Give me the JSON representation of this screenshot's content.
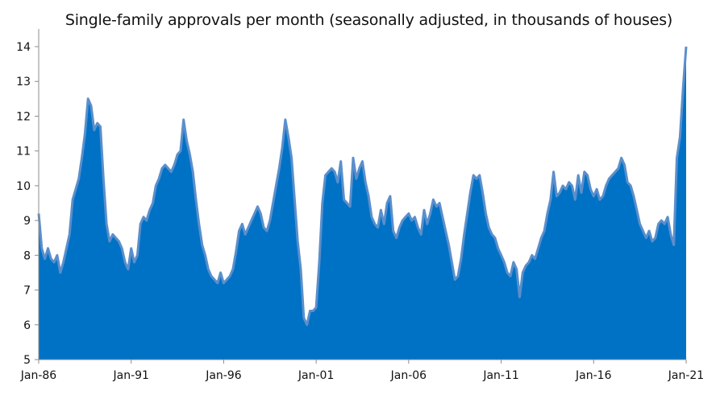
{
  "chart_data": {
    "type": "area",
    "title": "Single-family approvals per month (seasonally adjusted, in thousands of houses)",
    "xlabel": "",
    "ylabel": "",
    "ylim": [
      5,
      14
    ],
    "yticks": [
      5,
      6,
      7,
      8,
      9,
      10,
      11,
      12,
      13,
      14
    ],
    "xticks": [
      "Jan-86",
      "Jan-91",
      "Jan-96",
      "Jan-01",
      "Jan-06",
      "Jan-11",
      "Jan-16",
      "Jan-21"
    ],
    "x_range": [
      "1986-01",
      "2021-01"
    ],
    "grid": false,
    "fill_color": "#0072C6",
    "line_color": "#5B8FCB",
    "series": [
      {
        "points": [
          [
            "1986-01",
            9.2
          ],
          [
            "1986-03",
            8.2
          ],
          [
            "1986-05",
            7.9
          ],
          [
            "1986-07",
            8.2
          ],
          [
            "1986-09",
            7.9
          ],
          [
            "1986-11",
            7.8
          ],
          [
            "1987-01",
            8.0
          ],
          [
            "1987-03",
            7.5
          ],
          [
            "1987-05",
            7.8
          ],
          [
            "1987-07",
            8.2
          ],
          [
            "1987-09",
            8.6
          ],
          [
            "1987-11",
            9.6
          ],
          [
            "1988-01",
            9.9
          ],
          [
            "1988-03",
            10.2
          ],
          [
            "1988-05",
            10.8
          ],
          [
            "1988-07",
            11.5
          ],
          [
            "1988-09",
            12.5
          ],
          [
            "1988-11",
            12.3
          ],
          [
            "1989-01",
            11.6
          ],
          [
            "1989-03",
            11.8
          ],
          [
            "1989-05",
            11.7
          ],
          [
            "1989-07",
            10.2
          ],
          [
            "1989-09",
            8.9
          ],
          [
            "1989-11",
            8.4
          ],
          [
            "1990-01",
            8.6
          ],
          [
            "1990-03",
            8.5
          ],
          [
            "1990-05",
            8.4
          ],
          [
            "1990-07",
            8.2
          ],
          [
            "1990-09",
            7.8
          ],
          [
            "1990-11",
            7.6
          ],
          [
            "1991-01",
            8.2
          ],
          [
            "1991-03",
            7.8
          ],
          [
            "1991-05",
            8.0
          ],
          [
            "1991-07",
            8.9
          ],
          [
            "1991-09",
            9.1
          ],
          [
            "1991-11",
            9.0
          ],
          [
            "1992-01",
            9.3
          ],
          [
            "1992-03",
            9.5
          ],
          [
            "1992-05",
            10.0
          ],
          [
            "1992-07",
            10.2
          ],
          [
            "1992-09",
            10.5
          ],
          [
            "1992-11",
            10.6
          ],
          [
            "1993-01",
            10.5
          ],
          [
            "1993-03",
            10.4
          ],
          [
            "1993-05",
            10.6
          ],
          [
            "1993-07",
            10.9
          ],
          [
            "1993-09",
            11.0
          ],
          [
            "1993-11",
            11.9
          ],
          [
            "1994-01",
            11.3
          ],
          [
            "1994-03",
            10.9
          ],
          [
            "1994-05",
            10.4
          ],
          [
            "1994-07",
            9.6
          ],
          [
            "1994-09",
            8.9
          ],
          [
            "1994-11",
            8.3
          ],
          [
            "1995-01",
            8.0
          ],
          [
            "1995-03",
            7.6
          ],
          [
            "1995-05",
            7.4
          ],
          [
            "1995-07",
            7.3
          ],
          [
            "1995-09",
            7.2
          ],
          [
            "1995-11",
            7.5
          ],
          [
            "1996-01",
            7.2
          ],
          [
            "1996-03",
            7.3
          ],
          [
            "1996-05",
            7.4
          ],
          [
            "1996-07",
            7.6
          ],
          [
            "1996-09",
            8.1
          ],
          [
            "1996-11",
            8.7
          ],
          [
            "1997-01",
            8.9
          ],
          [
            "1997-03",
            8.6
          ],
          [
            "1997-05",
            8.8
          ],
          [
            "1997-07",
            9.0
          ],
          [
            "1997-09",
            9.2
          ],
          [
            "1997-11",
            9.4
          ],
          [
            "1998-01",
            9.2
          ],
          [
            "1998-03",
            8.8
          ],
          [
            "1998-05",
            8.7
          ],
          [
            "1998-07",
            9.0
          ],
          [
            "1998-09",
            9.5
          ],
          [
            "1998-11",
            10.0
          ],
          [
            "1999-01",
            10.5
          ],
          [
            "1999-03",
            11.1
          ],
          [
            "1999-05",
            11.9
          ],
          [
            "1999-07",
            11.4
          ],
          [
            "1999-09",
            10.8
          ],
          [
            "1999-11",
            9.6
          ],
          [
            "2000-01",
            8.4
          ],
          [
            "2000-03",
            7.6
          ],
          [
            "2000-05",
            6.2
          ],
          [
            "2000-07",
            6.0
          ],
          [
            "2000-09",
            6.4
          ],
          [
            "2000-11",
            6.4
          ],
          [
            "2001-01",
            6.5
          ],
          [
            "2001-03",
            7.8
          ],
          [
            "2001-05",
            9.5
          ],
          [
            "2001-07",
            10.3
          ],
          [
            "2001-09",
            10.4
          ],
          [
            "2001-11",
            10.5
          ],
          [
            "2002-01",
            10.4
          ],
          [
            "2002-03",
            10.1
          ],
          [
            "2002-05",
            10.7
          ],
          [
            "2002-07",
            9.6
          ],
          [
            "2002-09",
            9.5
          ],
          [
            "2002-11",
            9.4
          ],
          [
            "2003-01",
            10.8
          ],
          [
            "2003-03",
            10.2
          ],
          [
            "2003-05",
            10.5
          ],
          [
            "2003-07",
            10.7
          ],
          [
            "2003-09",
            10.1
          ],
          [
            "2003-11",
            9.7
          ],
          [
            "2004-01",
            9.1
          ],
          [
            "2004-03",
            8.9
          ],
          [
            "2004-05",
            8.8
          ],
          [
            "2004-07",
            9.3
          ],
          [
            "2004-09",
            8.9
          ],
          [
            "2004-11",
            9.5
          ],
          [
            "2005-01",
            9.7
          ],
          [
            "2005-03",
            8.7
          ],
          [
            "2005-05",
            8.5
          ],
          [
            "2005-07",
            8.8
          ],
          [
            "2005-09",
            9.0
          ],
          [
            "2005-11",
            9.1
          ],
          [
            "2006-01",
            9.2
          ],
          [
            "2006-03",
            9.0
          ],
          [
            "2006-05",
            9.1
          ],
          [
            "2006-07",
            8.8
          ],
          [
            "2006-09",
            8.6
          ],
          [
            "2006-11",
            9.3
          ],
          [
            "2007-01",
            8.9
          ],
          [
            "2007-03",
            9.2
          ],
          [
            "2007-05",
            9.6
          ],
          [
            "2007-07",
            9.4
          ],
          [
            "2007-09",
            9.5
          ],
          [
            "2007-11",
            9.1
          ],
          [
            "2008-01",
            8.7
          ],
          [
            "2008-03",
            8.3
          ],
          [
            "2008-05",
            7.8
          ],
          [
            "2008-07",
            7.3
          ],
          [
            "2008-09",
            7.4
          ],
          [
            "2008-11",
            7.9
          ],
          [
            "2009-01",
            8.6
          ],
          [
            "2009-03",
            9.2
          ],
          [
            "2009-05",
            9.8
          ],
          [
            "2009-07",
            10.3
          ],
          [
            "2009-09",
            10.2
          ],
          [
            "2009-11",
            10.3
          ],
          [
            "2010-01",
            9.8
          ],
          [
            "2010-03",
            9.2
          ],
          [
            "2010-05",
            8.8
          ],
          [
            "2010-07",
            8.6
          ],
          [
            "2010-09",
            8.5
          ],
          [
            "2010-11",
            8.2
          ],
          [
            "2011-01",
            8.0
          ],
          [
            "2011-03",
            7.8
          ],
          [
            "2011-05",
            7.5
          ],
          [
            "2011-07",
            7.4
          ],
          [
            "2011-09",
            7.8
          ],
          [
            "2011-11",
            7.6
          ],
          [
            "2012-01",
            6.8
          ],
          [
            "2012-03",
            7.5
          ],
          [
            "2012-05",
            7.7
          ],
          [
            "2012-07",
            7.8
          ],
          [
            "2012-09",
            8.0
          ],
          [
            "2012-11",
            7.9
          ],
          [
            "2013-01",
            8.2
          ],
          [
            "2013-03",
            8.5
          ],
          [
            "2013-05",
            8.7
          ],
          [
            "2013-07",
            9.2
          ],
          [
            "2013-09",
            9.6
          ],
          [
            "2013-11",
            10.4
          ],
          [
            "2014-01",
            9.7
          ],
          [
            "2014-03",
            9.8
          ],
          [
            "2014-05",
            10.0
          ],
          [
            "2014-07",
            9.9
          ],
          [
            "2014-09",
            10.1
          ],
          [
            "2014-11",
            10.0
          ],
          [
            "2015-01",
            9.6
          ],
          [
            "2015-03",
            10.3
          ],
          [
            "2015-05",
            9.8
          ],
          [
            "2015-07",
            10.4
          ],
          [
            "2015-09",
            10.3
          ],
          [
            "2015-11",
            9.9
          ],
          [
            "2016-01",
            9.7
          ],
          [
            "2016-03",
            9.9
          ],
          [
            "2016-05",
            9.6
          ],
          [
            "2016-07",
            9.7
          ],
          [
            "2016-09",
            10.0
          ],
          [
            "2016-11",
            10.2
          ],
          [
            "2017-01",
            10.3
          ],
          [
            "2017-03",
            10.4
          ],
          [
            "2017-05",
            10.5
          ],
          [
            "2017-07",
            10.8
          ],
          [
            "2017-09",
            10.6
          ],
          [
            "2017-11",
            10.1
          ],
          [
            "2018-01",
            10.0
          ],
          [
            "2018-03",
            9.7
          ],
          [
            "2018-05",
            9.3
          ],
          [
            "2018-07",
            8.9
          ],
          [
            "2018-09",
            8.7
          ],
          [
            "2018-11",
            8.5
          ],
          [
            "2019-01",
            8.7
          ],
          [
            "2019-03",
            8.4
          ],
          [
            "2019-05",
            8.5
          ],
          [
            "2019-07",
            8.9
          ],
          [
            "2019-09",
            9.0
          ],
          [
            "2019-11",
            8.9
          ],
          [
            "2020-01",
            9.1
          ],
          [
            "2020-03",
            8.6
          ],
          [
            "2020-05",
            8.3
          ],
          [
            "2020-07",
            10.8
          ],
          [
            "2020-09",
            11.4
          ],
          [
            "2020-11",
            12.8
          ],
          [
            "2021-01",
            14.0
          ]
        ]
      }
    ]
  }
}
